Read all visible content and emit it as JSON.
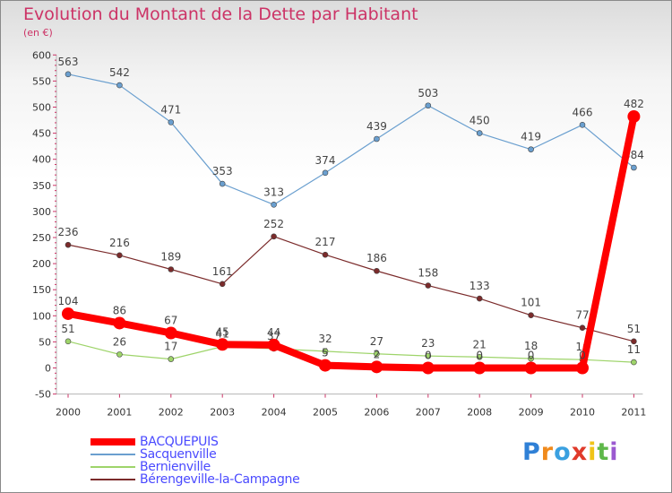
{
  "chart_data": {
    "type": "line",
    "title": "Evolution du Montant de la Dette par Habitant",
    "subtitle": "(en €)",
    "x": [
      "2000",
      "2001",
      "2002",
      "2003",
      "2004",
      "2005",
      "2006",
      "2007",
      "2008",
      "2009",
      "2010",
      "2011"
    ],
    "yticks": [
      "-50",
      "0",
      "50",
      "100",
      "150",
      "200",
      "250",
      "300",
      "350",
      "400",
      "450",
      "500",
      "550",
      "600"
    ],
    "ylim": [
      -50,
      600
    ],
    "grid": false,
    "legend_position": "bottom-left",
    "series": [
      {
        "name": "Sacquenville",
        "color": "#6a9fcf",
        "values": [
          563,
          542,
          471,
          353,
          313,
          374,
          439,
          503,
          450,
          419,
          466,
          384
        ],
        "labels": [
          "563",
          "542",
          "471",
          "353",
          "313",
          "374",
          "439",
          "503",
          "450",
          "419",
          "466",
          "384"
        ]
      },
      {
        "name": "Bérengeville-la-Campagne",
        "color": "#7b2b2b",
        "values": [
          236,
          216,
          189,
          161,
          252,
          217,
          186,
          158,
          133,
          101,
          77,
          51
        ],
        "labels": [
          "236",
          "216",
          "189",
          "161",
          "252",
          "217",
          "186",
          "158",
          "133",
          "101",
          "77",
          "51"
        ]
      },
      {
        "name": "Bernienville",
        "color": "#9ed46a",
        "values": [
          51,
          26,
          17,
          41,
          37,
          32,
          27,
          23,
          21,
          18,
          16,
          11
        ],
        "labels": [
          "51",
          "26",
          "17",
          "41",
          "37",
          "32",
          "27",
          "23",
          "21",
          "18",
          "16",
          "11"
        ]
      },
      {
        "name": "BACQUEPUIS",
        "color": "#ff0000",
        "values": [
          104,
          86,
          67,
          45,
          44,
          5,
          2,
          0,
          0,
          0,
          0,
          482
        ],
        "labels": [
          "104",
          "86",
          "67",
          "45",
          "44",
          "5",
          "2",
          "0",
          "0",
          "0",
          "0",
          "482"
        ]
      }
    ]
  },
  "legend": {
    "items": [
      {
        "label": "BACQUEPUIS",
        "color": "#ff0000",
        "thick": 8
      },
      {
        "label": "Sacquenville",
        "color": "#6a9fcf",
        "thick": 2
      },
      {
        "label": "Bernienville",
        "color": "#9ed46a",
        "thick": 2
      },
      {
        "label": "Bérengeville-la-Campagne",
        "color": "#7b2b2b",
        "thick": 2
      }
    ]
  },
  "logo": {
    "letters": [
      "P",
      "r",
      "o",
      "x",
      "i",
      "t",
      "i"
    ],
    "colors": [
      "#2f80d6",
      "#f08a1c",
      "#3aa0e0",
      "#e03a2a",
      "#f0c419",
      "#5fb84a",
      "#9b59d0"
    ]
  }
}
